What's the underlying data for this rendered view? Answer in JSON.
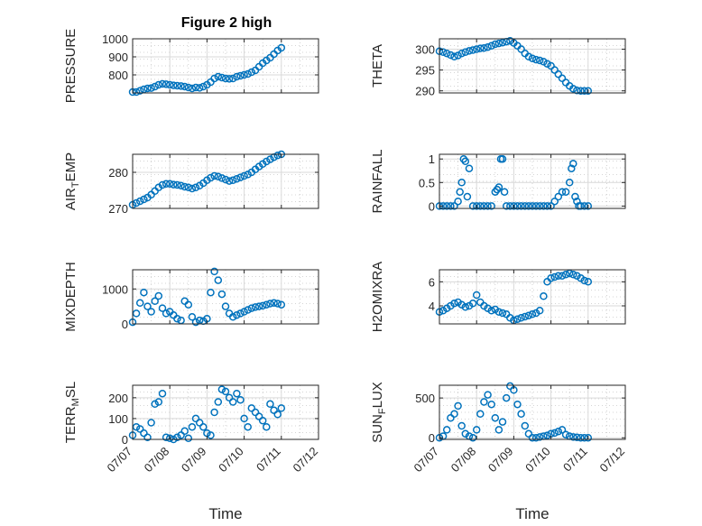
{
  "figure": {
    "title": "Figure 2 high"
  },
  "chart_data": [
    {
      "type": "scatter",
      "title": "Figure 2 high",
      "ylabel": "PRESSURE",
      "xlabel": "",
      "xlim": [
        0,
        5
      ],
      "ylim": [
        700,
        1000
      ],
      "yticks": [
        800,
        900,
        1000
      ],
      "xticks": [],
      "x": [
        0,
        0.1,
        0.2,
        0.3,
        0.4,
        0.5,
        0.6,
        0.7,
        0.8,
        0.9,
        1.0,
        1.1,
        1.2,
        1.3,
        1.4,
        1.5,
        1.6,
        1.7,
        1.8,
        1.9,
        2.0,
        2.1,
        2.2,
        2.3,
        2.4,
        2.5,
        2.6,
        2.7,
        2.8,
        2.9,
        3.0,
        3.1,
        3.2,
        3.3,
        3.4,
        3.5,
        3.6,
        3.7,
        3.8,
        3.9,
        4.0
      ],
      "y": [
        705,
        705,
        712,
        720,
        725,
        727,
        735,
        745,
        750,
        748,
        745,
        742,
        740,
        738,
        735,
        730,
        725,
        730,
        728,
        735,
        745,
        760,
        780,
        790,
        785,
        780,
        778,
        780,
        790,
        795,
        800,
        805,
        815,
        825,
        845,
        865,
        880,
        895,
        915,
        935,
        950
      ]
    },
    {
      "type": "scatter",
      "ylabel": "THETA",
      "xlabel": "",
      "xlim": [
        0,
        5
      ],
      "ylim": [
        289.5,
        302.5
      ],
      "yticks": [
        290,
        295,
        300
      ],
      "xticks": [],
      "x": [
        0,
        0.1,
        0.2,
        0.3,
        0.4,
        0.5,
        0.6,
        0.7,
        0.8,
        0.9,
        1.0,
        1.1,
        1.2,
        1.3,
        1.4,
        1.5,
        1.6,
        1.7,
        1.8,
        1.9,
        2.0,
        2.1,
        2.2,
        2.3,
        2.4,
        2.5,
        2.6,
        2.7,
        2.8,
        2.9,
        3.0,
        3.1,
        3.2,
        3.3,
        3.4,
        3.5,
        3.6,
        3.7,
        3.8,
        3.9,
        4.0
      ],
      "y": [
        299.5,
        299.3,
        299.0,
        298.6,
        298.2,
        298.5,
        299.0,
        299.3,
        299.6,
        299.8,
        300.0,
        300.2,
        300.3,
        300.5,
        300.8,
        301.2,
        301.4,
        301.6,
        301.8,
        302.0,
        301.5,
        300.8,
        300.0,
        299.0,
        298.2,
        297.8,
        297.5,
        297.3,
        297.0,
        296.5,
        296.0,
        295.0,
        294.0,
        293.0,
        292.0,
        291.2,
        290.5,
        290.1,
        290.0,
        290.0,
        290.0
      ]
    },
    {
      "type": "scatter",
      "ylabel": "AIR",
      "ylabel_sub": "T",
      "ylabel_rest": "EMP",
      "xlabel": "",
      "xlim": [
        0,
        5
      ],
      "ylim": [
        270,
        285
      ],
      "yticks": [
        270,
        280
      ],
      "xticks": [],
      "x": [
        0,
        0.1,
        0.2,
        0.3,
        0.4,
        0.5,
        0.6,
        0.7,
        0.8,
        0.9,
        1.0,
        1.1,
        1.2,
        1.3,
        1.4,
        1.5,
        1.6,
        1.7,
        1.8,
        1.9,
        2.0,
        2.1,
        2.2,
        2.3,
        2.4,
        2.5,
        2.6,
        2.7,
        2.8,
        2.9,
        3.0,
        3.1,
        3.2,
        3.3,
        3.4,
        3.5,
        3.6,
        3.7,
        3.8,
        3.9,
        4.0
      ],
      "y": [
        271.0,
        271.5,
        272.0,
        272.5,
        273.0,
        273.8,
        274.8,
        275.8,
        276.5,
        276.8,
        276.8,
        276.6,
        276.5,
        276.3,
        276.0,
        275.8,
        275.5,
        275.8,
        276.3,
        277.0,
        277.8,
        278.5,
        279.0,
        278.8,
        278.4,
        278.0,
        277.6,
        277.8,
        278.2,
        278.6,
        279.0,
        279.4,
        280.0,
        280.8,
        281.6,
        282.3,
        283.0,
        283.6,
        284.2,
        284.7,
        285.0
      ]
    },
    {
      "type": "scatter",
      "ylabel": "RAINFALL",
      "xlabel": "",
      "xlim": [
        0,
        5
      ],
      "ylim": [
        -0.05,
        1.1
      ],
      "yticks": [
        0,
        0.5,
        1
      ],
      "xticks": [],
      "x": [
        0,
        0.1,
        0.2,
        0.3,
        0.4,
        0.5,
        0.55,
        0.6,
        0.65,
        0.7,
        0.75,
        0.8,
        0.9,
        1.0,
        1.1,
        1.2,
        1.3,
        1.4,
        1.5,
        1.55,
        1.6,
        1.65,
        1.7,
        1.75,
        1.8,
        1.9,
        2.0,
        2.1,
        2.2,
        2.3,
        2.4,
        2.5,
        2.6,
        2.7,
        2.8,
        2.9,
        3.0,
        3.1,
        3.2,
        3.3,
        3.4,
        3.5,
        3.55,
        3.6,
        3.65,
        3.7,
        3.75,
        3.8,
        3.9,
        4.0
      ],
      "y": [
        0,
        0,
        0,
        0,
        0,
        0.1,
        0.3,
        0.5,
        1.0,
        0.95,
        0.2,
        0.8,
        0,
        0,
        0,
        0,
        0,
        0,
        0.3,
        0.35,
        0.4,
        1.0,
        1.0,
        0.3,
        0,
        0,
        0,
        0,
        0,
        0,
        0,
        0,
        0,
        0,
        0,
        0,
        0,
        0.1,
        0.2,
        0.3,
        0.3,
        0.5,
        0.8,
        0.9,
        0.2,
        0.1,
        0,
        0,
        0,
        0
      ]
    },
    {
      "type": "scatter",
      "ylabel": "MIXDEPTH",
      "xlabel": "",
      "xlim": [
        0,
        5
      ],
      "ylim": [
        0,
        1550
      ],
      "yticks": [
        0,
        1000
      ],
      "xticks": [],
      "x": [
        0,
        0.1,
        0.2,
        0.3,
        0.4,
        0.5,
        0.6,
        0.7,
        0.8,
        0.9,
        1.0,
        1.1,
        1.2,
        1.3,
        1.4,
        1.5,
        1.6,
        1.7,
        1.8,
        1.9,
        2.0,
        2.1,
        2.2,
        2.3,
        2.4,
        2.5,
        2.6,
        2.7,
        2.8,
        2.9,
        3.0,
        3.1,
        3.2,
        3.3,
        3.4,
        3.5,
        3.6,
        3.7,
        3.8,
        3.9,
        4.0
      ],
      "y": [
        50,
        300,
        600,
        900,
        500,
        350,
        650,
        800,
        450,
        300,
        350,
        250,
        150,
        100,
        650,
        550,
        200,
        50,
        100,
        80,
        150,
        900,
        1500,
        1250,
        850,
        500,
        300,
        200,
        250,
        300,
        350,
        400,
        450,
        480,
        500,
        520,
        550,
        580,
        600,
        580,
        550
      ]
    },
    {
      "type": "scatter",
      "ylabel": "H2OMIXRA",
      "xlabel": "",
      "xlim": [
        0,
        5
      ],
      "ylim": [
        2.5,
        7.0
      ],
      "yticks": [
        4,
        6
      ],
      "xticks": [],
      "x": [
        0,
        0.1,
        0.2,
        0.3,
        0.4,
        0.5,
        0.6,
        0.7,
        0.8,
        0.9,
        1.0,
        1.1,
        1.2,
        1.3,
        1.4,
        1.5,
        1.6,
        1.7,
        1.8,
        1.9,
        2.0,
        2.1,
        2.2,
        2.3,
        2.4,
        2.5,
        2.6,
        2.7,
        2.8,
        2.9,
        3.0,
        3.1,
        3.2,
        3.3,
        3.4,
        3.5,
        3.6,
        3.7,
        3.8,
        3.9,
        4.0
      ],
      "y": [
        3.5,
        3.6,
        3.8,
        4.0,
        4.2,
        4.3,
        4.1,
        3.9,
        4.0,
        4.2,
        4.9,
        4.3,
        4.0,
        3.8,
        3.6,
        3.7,
        3.5,
        3.4,
        3.3,
        3.0,
        2.8,
        2.9,
        3.0,
        3.1,
        3.2,
        3.3,
        3.4,
        3.6,
        4.8,
        6.0,
        6.3,
        6.4,
        6.5,
        6.5,
        6.6,
        6.7,
        6.6,
        6.5,
        6.3,
        6.1,
        6.0
      ]
    },
    {
      "type": "scatter",
      "ylabel": "TERR",
      "ylabel_sub": "M",
      "ylabel_rest": "SL",
      "xlabel": "Time",
      "xlim": [
        0,
        5
      ],
      "ylim": [
        0,
        260
      ],
      "yticks": [
        0,
        100,
        200
      ],
      "xticks": [
        "07/07",
        "07/08",
        "07/09",
        "07/10",
        "07/11",
        "07/12"
      ],
      "x": [
        0,
        0.1,
        0.2,
        0.3,
        0.4,
        0.5,
        0.6,
        0.7,
        0.8,
        0.9,
        1.0,
        1.1,
        1.2,
        1.3,
        1.4,
        1.5,
        1.6,
        1.7,
        1.8,
        1.9,
        2.0,
        2.1,
        2.2,
        2.3,
        2.4,
        2.5,
        2.6,
        2.7,
        2.8,
        2.9,
        3.0,
        3.1,
        3.2,
        3.3,
        3.4,
        3.5,
        3.6,
        3.7,
        3.8,
        3.9,
        4.0
      ],
      "y": [
        20,
        60,
        50,
        30,
        10,
        80,
        170,
        180,
        220,
        10,
        5,
        0,
        10,
        20,
        40,
        5,
        60,
        100,
        80,
        60,
        30,
        20,
        130,
        180,
        240,
        230,
        200,
        180,
        220,
        190,
        100,
        60,
        150,
        130,
        110,
        90,
        60,
        170,
        140,
        120,
        150
      ]
    },
    {
      "type": "scatter",
      "ylabel": "SUN",
      "ylabel_sub": "F",
      "ylabel_rest": "LUX",
      "xlabel": "Time",
      "xlim": [
        0,
        5
      ],
      "ylim": [
        -20,
        660
      ],
      "yticks": [
        0,
        500
      ],
      "xticks": [
        "07/07",
        "07/08",
        "07/09",
        "07/10",
        "07/11",
        "07/12"
      ],
      "x": [
        0,
        0.1,
        0.2,
        0.3,
        0.4,
        0.5,
        0.6,
        0.7,
        0.8,
        0.9,
        1.0,
        1.1,
        1.2,
        1.3,
        1.4,
        1.5,
        1.6,
        1.7,
        1.8,
        1.9,
        2.0,
        2.1,
        2.2,
        2.3,
        2.4,
        2.5,
        2.6,
        2.7,
        2.8,
        2.9,
        3.0,
        3.1,
        3.2,
        3.3,
        3.4,
        3.5,
        3.6,
        3.7,
        3.8,
        3.9,
        4.0
      ],
      "y": [
        0,
        20,
        100,
        250,
        300,
        400,
        150,
        50,
        20,
        0,
        100,
        300,
        450,
        540,
        420,
        250,
        100,
        200,
        500,
        650,
        600,
        420,
        300,
        150,
        50,
        0,
        0,
        10,
        20,
        30,
        50,
        60,
        80,
        100,
        40,
        20,
        10,
        5,
        0,
        0,
        0
      ]
    }
  ]
}
